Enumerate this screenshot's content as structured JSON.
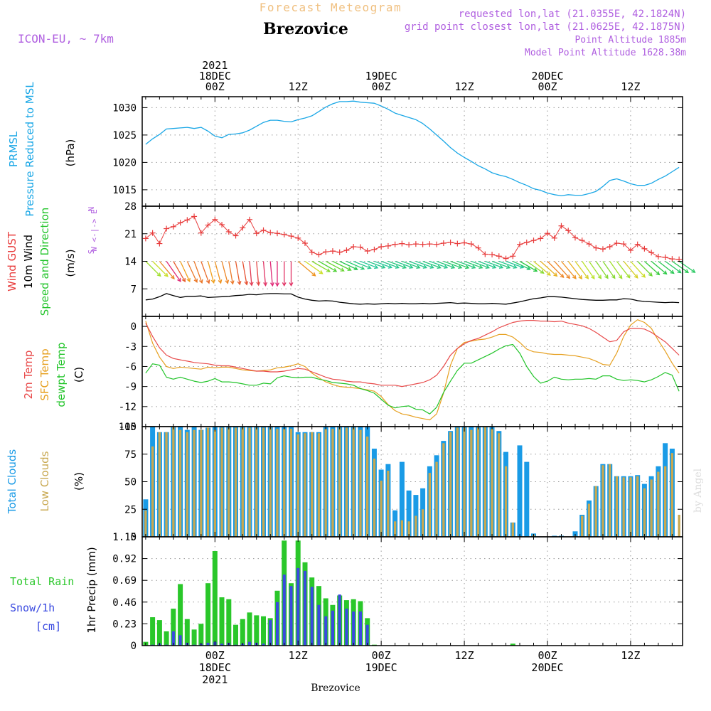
{
  "header": {
    "forecast_label": "Forecast Meteogram",
    "station": "Brezovice",
    "model": "ICON-EU, ~ 7km",
    "requested": "requested lon,lat (21.0355E, 42.1824N)",
    "gridpoint": "grid point closest lon,lat (21.0625E, 42.1875N)",
    "point_alt": "Point Altitude 1885m",
    "model_alt": "Model Point Altitude 1628.38m",
    "footer_station": "Brezovice",
    "watermark": "by Angel"
  },
  "colors": {
    "pressure": "#1aa7e6",
    "gust": "#e83c3c",
    "wind": "#000000",
    "temp2m": "#e84a4a",
    "sfc": "#e6a020",
    "dewpt": "#22c42a",
    "total_clouds": "#1a9be6",
    "low_clouds": "#c8a850",
    "rain": "#2ac72a",
    "snow": "#3a4ae0",
    "label_purple": "#b060e0",
    "label_orange": "#f0c080"
  },
  "time_axis": {
    "top_labels": [
      {
        "idx": 10,
        "lines": [
          "2021",
          "18DEC",
          "00Z"
        ]
      },
      {
        "idx": 22,
        "lines": [
          "12Z"
        ]
      },
      {
        "idx": 34,
        "lines": [
          "19DEC",
          "00Z"
        ]
      },
      {
        "idx": 46,
        "lines": [
          "12Z"
        ]
      },
      {
        "idx": 58,
        "lines": [
          "20DEC",
          "00Z"
        ]
      },
      {
        "idx": 70,
        "lines": [
          "12Z"
        ]
      }
    ],
    "bottom_labels": [
      {
        "idx": 10,
        "lines": [
          "00Z",
          "18DEC",
          "2021"
        ]
      },
      {
        "idx": 22,
        "lines": [
          "12Z"
        ]
      },
      {
        "idx": 34,
        "lines": [
          "00Z",
          "19DEC"
        ]
      },
      {
        "idx": 46,
        "lines": [
          "12Z"
        ]
      },
      {
        "idx": 58,
        "lines": [
          "00Z",
          "20DEC"
        ]
      },
      {
        "idx": 70,
        "lines": [
          "12Z"
        ]
      }
    ]
  },
  "chart_data": [
    {
      "type": "line",
      "panel": "pressure",
      "label_lines": [
        "PRMSL",
        "Pressure Reduced to MSL"
      ],
      "unit": "(hPa)",
      "ylim": [
        1012,
        1032
      ],
      "yticks": [
        1015,
        1020,
        1025,
        1030
      ],
      "series": [
        {
          "name": "PRMSL",
          "values": [
            1023.3,
            1024.3,
            1025.1,
            1026.1,
            1026.2,
            1026.3,
            1026.4,
            1026.2,
            1026.4,
            1025.7,
            1024.8,
            1024.5,
            1025.1,
            1025.2,
            1025.4,
            1025.9,
            1026.6,
            1027.3,
            1027.7,
            1027.7,
            1027.5,
            1027.4,
            1027.8,
            1028.1,
            1028.5,
            1029.3,
            1030.1,
            1030.7,
            1031.1,
            1031.1,
            1031.2,
            1031.0,
            1030.9,
            1030.8,
            1030.3,
            1029.7,
            1029.0,
            1028.6,
            1028.2,
            1027.8,
            1027.1,
            1026.1,
            1025.0,
            1023.9,
            1022.7,
            1021.7,
            1020.9,
            1020.2,
            1019.4,
            1018.8,
            1018.1,
            1017.7,
            1017.4,
            1016.9,
            1016.3,
            1015.8,
            1015.2,
            1014.9,
            1014.4,
            1014.1,
            1013.9,
            1014.1,
            1014.0,
            1014.0,
            1014.3,
            1014.7,
            1015.6,
            1016.7,
            1017.0,
            1016.6,
            1016.1,
            1015.8,
            1015.8,
            1016.2,
            1016.9,
            1017.5,
            1018.3,
            1019.1
          ]
        }
      ]
    },
    {
      "type": "line",
      "panel": "wind",
      "label_lines": [
        "Wind GUST",
        "10m Wind",
        "Speed and Direction"
      ],
      "unit": "(m/s)",
      "compass": [
        "N",
        "W <-|-> E",
        "S"
      ],
      "ylim": [
        0,
        28
      ],
      "yticks": [
        7,
        14,
        21,
        28
      ],
      "series": [
        {
          "name": "Wind GUST",
          "values": [
            19.8,
            21.2,
            18.5,
            22.3,
            22.8,
            23.8,
            24.5,
            25.4,
            21.2,
            23.2,
            24.6,
            23.3,
            21.5,
            20.5,
            22.5,
            24.6,
            21.1,
            21.9,
            21.3,
            21.1,
            20.8,
            20.4,
            19.9,
            18.6,
            16.3,
            15.7,
            16.4,
            16.6,
            16.3,
            16.8,
            17.7,
            17.6,
            16.6,
            17.0,
            17.7,
            17.9,
            18.3,
            18.5,
            18.2,
            18.4,
            18.3,
            18.4,
            18.3,
            18.6,
            18.8,
            18.5,
            18.7,
            18.4,
            17.4,
            15.8,
            15.7,
            15.3,
            14.7,
            15.3,
            18.3,
            18.8,
            19.3,
            19.8,
            21.1,
            19.9,
            23.0,
            21.8,
            20.0,
            19.3,
            18.4,
            17.4,
            17.1,
            17.7,
            18.6,
            18.4,
            16.8,
            18.3,
            17.2,
            16.2,
            15.2,
            15.0,
            14.6,
            14.5
          ]
        },
        {
          "name": "10m Wind",
          "values": [
            4.2,
            4.4,
            5.0,
            5.8,
            5.3,
            4.8,
            5.1,
            5.1,
            5.2,
            4.8,
            4.9,
            5.0,
            5.1,
            5.3,
            5.4,
            5.6,
            5.5,
            5.7,
            5.8,
            5.8,
            5.7,
            5.7,
            4.9,
            4.4,
            4.1,
            3.9,
            4.0,
            3.9,
            3.6,
            3.4,
            3.2,
            3.1,
            3.2,
            3.1,
            3.2,
            3.3,
            3.2,
            3.3,
            3.2,
            3.2,
            3.3,
            3.2,
            3.3,
            3.4,
            3.5,
            3.3,
            3.4,
            3.3,
            3.2,
            3.2,
            3.3,
            3.2,
            3.1,
            3.4,
            3.7,
            4.1,
            4.5,
            4.7,
            5.0,
            5.0,
            4.9,
            4.7,
            4.5,
            4.3,
            4.2,
            4.1,
            4.1,
            4.2,
            4.2,
            4.5,
            4.4,
            4.0,
            3.8,
            3.7,
            3.6,
            3.5,
            3.6,
            3.5
          ]
        }
      ],
      "direction_deg": [
        315,
        315,
        320,
        325,
        330,
        335,
        335,
        340,
        340,
        345,
        345,
        345,
        350,
        350,
        350,
        355,
        355,
        355,
        355,
        0,
        0,
        0,
        310,
        305,
        300,
        300,
        298,
        296,
        295,
        294,
        292,
        291,
        290,
        290,
        290,
        290,
        290,
        290,
        290,
        290,
        290,
        290,
        290,
        290,
        290,
        290,
        290,
        290,
        290,
        290,
        290,
        290,
        290,
        295,
        300,
        305,
        310,
        312,
        315,
        318,
        320,
        322,
        323,
        325,
        325,
        325,
        325,
        325,
        322,
        320,
        318,
        315,
        312,
        310,
        308,
        306,
        305,
        305
      ]
    },
    {
      "type": "line",
      "panel": "temperature",
      "label_lines": [
        "2m Temp",
        "SFC Temp",
        "dewpt Temp"
      ],
      "unit": "(C)",
      "ylim": [
        -15,
        1.5
      ],
      "yticks": [
        -15,
        -12,
        -9,
        -6,
        -3,
        0
      ],
      "series": [
        {
          "name": "2m Temp",
          "values": [
            0.5,
            -1.5,
            -3.2,
            -4.3,
            -4.8,
            -5.0,
            -5.2,
            -5.4,
            -5.5,
            -5.6,
            -5.8,
            -5.9,
            -5.9,
            -6.1,
            -6.3,
            -6.5,
            -6.7,
            -6.7,
            -6.8,
            -6.8,
            -6.7,
            -6.5,
            -6.3,
            -6.4,
            -6.8,
            -7.2,
            -7.6,
            -7.9,
            -8.0,
            -8.2,
            -8.3,
            -8.3,
            -8.5,
            -8.6,
            -8.8,
            -8.8,
            -8.8,
            -9.0,
            -8.8,
            -8.6,
            -8.4,
            -8.0,
            -7.3,
            -6.0,
            -4.3,
            -3.3,
            -2.6,
            -2.1,
            -1.8,
            -1.3,
            -0.8,
            -0.2,
            0.2,
            0.6,
            0.8,
            0.9,
            0.9,
            0.8,
            0.8,
            0.7,
            0.8,
            0.5,
            0.3,
            0.1,
            -0.3,
            -0.9,
            -1.6,
            -2.3,
            -2.1,
            -0.8,
            -0.3,
            -0.3,
            -0.4,
            -0.9,
            -1.6,
            -2.3,
            -3.3,
            -4.3
          ]
        },
        {
          "name": "SFC Temp",
          "values": [
            0.8,
            -2.5,
            -4.6,
            -6.0,
            -6.3,
            -6.1,
            -6.2,
            -6.3,
            -6.4,
            -6.1,
            -6.2,
            -6.1,
            -6.1,
            -6.3,
            -6.5,
            -6.6,
            -6.7,
            -6.6,
            -6.5,
            -6.2,
            -6.1,
            -5.9,
            -5.6,
            -6.0,
            -7.0,
            -7.7,
            -8.3,
            -8.7,
            -9.0,
            -9.1,
            -9.2,
            -9.3,
            -9.5,
            -9.7,
            -10.5,
            -11.7,
            -12.6,
            -13.1,
            -13.3,
            -13.6,
            -13.8,
            -14.0,
            -13.1,
            -10.0,
            -5.8,
            -3.3,
            -2.4,
            -2.2,
            -2.0,
            -1.9,
            -1.6,
            -1.2,
            -1.2,
            -1.6,
            -2.4,
            -3.4,
            -3.8,
            -3.9,
            -4.1,
            -4.2,
            -4.2,
            -4.3,
            -4.4,
            -4.6,
            -4.8,
            -5.2,
            -5.7,
            -5.8,
            -4.0,
            -1.5,
            0.2,
            1.0,
            0.6,
            -0.3,
            -2.1,
            -3.7,
            -5.5,
            -7.0
          ]
        },
        {
          "name": "dewpt Temp",
          "values": [
            -7.0,
            -5.6,
            -5.8,
            -7.6,
            -7.9,
            -7.6,
            -7.9,
            -8.2,
            -8.4,
            -8.2,
            -7.8,
            -8.3,
            -8.3,
            -8.4,
            -8.6,
            -8.8,
            -8.8,
            -8.5,
            -8.6,
            -7.7,
            -7.4,
            -7.6,
            -7.7,
            -7.6,
            -7.6,
            -7.9,
            -8.1,
            -8.4,
            -8.5,
            -8.6,
            -8.8,
            -9.3,
            -9.6,
            -10.0,
            -10.9,
            -11.8,
            -12.2,
            -12.0,
            -11.9,
            -12.4,
            -12.5,
            -13.1,
            -12.1,
            -9.9,
            -8.2,
            -6.6,
            -5.5,
            -5.5,
            -5.0,
            -4.5,
            -4.0,
            -3.4,
            -2.9,
            -2.7,
            -4.0,
            -6.0,
            -7.5,
            -8.5,
            -8.2,
            -7.6,
            -7.9,
            -8.0,
            -7.9,
            -7.9,
            -7.8,
            -7.9,
            -7.4,
            -7.4,
            -7.9,
            -8.1,
            -8.0,
            -8.1,
            -8.3,
            -8.0,
            -7.5,
            -6.9,
            -7.3,
            -9.7
          ]
        }
      ]
    },
    {
      "type": "bar",
      "panel": "clouds",
      "label_lines": [
        "Total Clouds",
        "Low Clouds"
      ],
      "unit": "(%)",
      "ylim": [
        0,
        100
      ],
      "yticks": [
        0,
        25,
        50,
        75,
        100
      ],
      "series": [
        {
          "name": "Total Clouds",
          "values": [
            34,
            100,
            95,
            95,
            100,
            100,
            97,
            100,
            97,
            99,
            100,
            100,
            100,
            100,
            100,
            100,
            100,
            100,
            100,
            100,
            100,
            100,
            95,
            95,
            95,
            95,
            100,
            100,
            100,
            100,
            100,
            100,
            100,
            80,
            61,
            66,
            24,
            68,
            42,
            38,
            44,
            64,
            74,
            87,
            96,
            100,
            100,
            100,
            100,
            100,
            100,
            96,
            77,
            13,
            83,
            68,
            3,
            0,
            0,
            1,
            1,
            0,
            5,
            20,
            33,
            46,
            66,
            66,
            55,
            55,
            55,
            56,
            48,
            55,
            64,
            85,
            80,
            0
          ]
        },
        {
          "name": "Low Clouds",
          "values": [
            24,
            82,
            95,
            95,
            100,
            97,
            95,
            97,
            97,
            99,
            97,
            99,
            99,
            99,
            99,
            99,
            99,
            99,
            99,
            98,
            98,
            98,
            93,
            94,
            95,
            94,
            98,
            98,
            99,
            99,
            99,
            97,
            91,
            71,
            51,
            60,
            14,
            15,
            14,
            19,
            25,
            58,
            68,
            85,
            95,
            99,
            99,
            97,
            99,
            100,
            98,
            94,
            64,
            13,
            0,
            0,
            2,
            0,
            0,
            0,
            0,
            0,
            1,
            19,
            30,
            46,
            65,
            66,
            55,
            54,
            54,
            55,
            44,
            52,
            59,
            64,
            76,
            20
          ]
        }
      ]
    },
    {
      "type": "bar",
      "panel": "precip",
      "label_lines": [
        "Total Rain",
        "Snow/1h",
        "[cm]"
      ],
      "unit": "1hr Precip (mm)",
      "ylim": [
        0,
        1.15
      ],
      "yticks": [
        0,
        0.23,
        0.46,
        0.69,
        0.92,
        1.15
      ],
      "ytick_labels": [
        "0",
        "0.23",
        "0.46",
        "0.69",
        "0.92",
        "1.15"
      ],
      "series": [
        {
          "name": "Total Rain",
          "values": [
            0.04,
            0.3,
            0.27,
            0.15,
            0.39,
            0.65,
            0.28,
            0.17,
            0.23,
            0.66,
            1.0,
            0.51,
            0.49,
            0.22,
            0.28,
            0.35,
            0.32,
            0.31,
            0.29,
            0.58,
            1.11,
            0.66,
            1.11,
            0.88,
            0.72,
            0.63,
            0.5,
            0.43,
            0.53,
            0.48,
            0.49,
            0.47,
            0.29,
            0.01,
            0,
            0,
            0,
            0,
            0,
            0,
            0,
            0,
            0,
            0,
            0,
            0,
            0,
            0,
            0,
            0,
            0,
            0,
            0,
            0.02,
            0,
            0,
            0,
            0,
            0,
            0,
            0,
            0,
            0,
            0,
            0,
            0,
            0,
            0,
            0,
            0,
            0,
            0,
            0,
            0,
            0,
            0,
            0,
            0
          ]
        },
        {
          "name": "Snow/1h",
          "values": [
            0,
            0.01,
            0.02,
            0.01,
            0.15,
            0.11,
            0.03,
            0.01,
            0.02,
            0.03,
            0.04,
            0.02,
            0.03,
            0.01,
            0.02,
            0.04,
            0.03,
            0.02,
            0.27,
            0.46,
            0.75,
            0.63,
            0.82,
            0.79,
            0.62,
            0.43,
            0.31,
            0.37,
            0.54,
            0.39,
            0.36,
            0.36,
            0.22,
            0,
            0,
            0,
            0,
            0,
            0,
            0,
            0,
            0,
            0,
            0,
            0,
            0,
            0,
            0,
            0,
            0,
            0,
            0,
            0,
            0,
            0,
            0,
            0,
            0,
            0,
            0,
            0,
            0,
            0,
            0,
            0,
            0,
            0,
            0,
            0,
            0,
            0,
            0,
            0,
            0,
            0,
            0,
            0,
            0
          ]
        }
      ]
    }
  ]
}
